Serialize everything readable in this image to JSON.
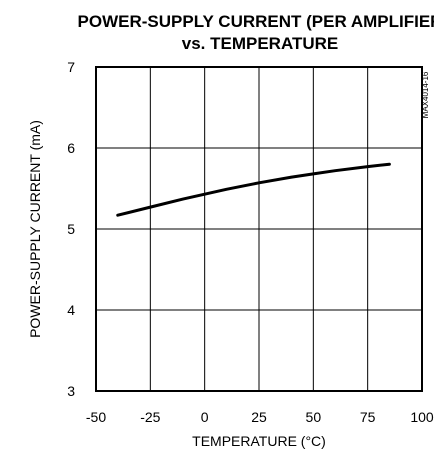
{
  "chart_data": {
    "type": "line",
    "title_line1": "POWER-SUPPLY CURRENT (PER AMPLIFIER",
    "title_line2": "vs. TEMPERATURE",
    "xlabel": "TEMPERATURE (°C)",
    "ylabel": "POWER-SUPPLY CURRENT (mA)",
    "figure_id": "MAX4014-16",
    "xlim": [
      -50,
      100
    ],
    "ylim": [
      3,
      7
    ],
    "x_ticks": [
      -50,
      -25,
      0,
      25,
      50,
      75,
      100
    ],
    "y_ticks": [
      3,
      4,
      5,
      6,
      7
    ],
    "grid": true,
    "series": [
      {
        "x": [
          -40,
          -25,
          -10,
          0,
          10,
          25,
          40,
          50,
          60,
          75,
          85
        ],
        "y": [
          5.17,
          5.27,
          5.37,
          5.43,
          5.49,
          5.57,
          5.64,
          5.68,
          5.72,
          5.77,
          5.8
        ]
      }
    ]
  }
}
